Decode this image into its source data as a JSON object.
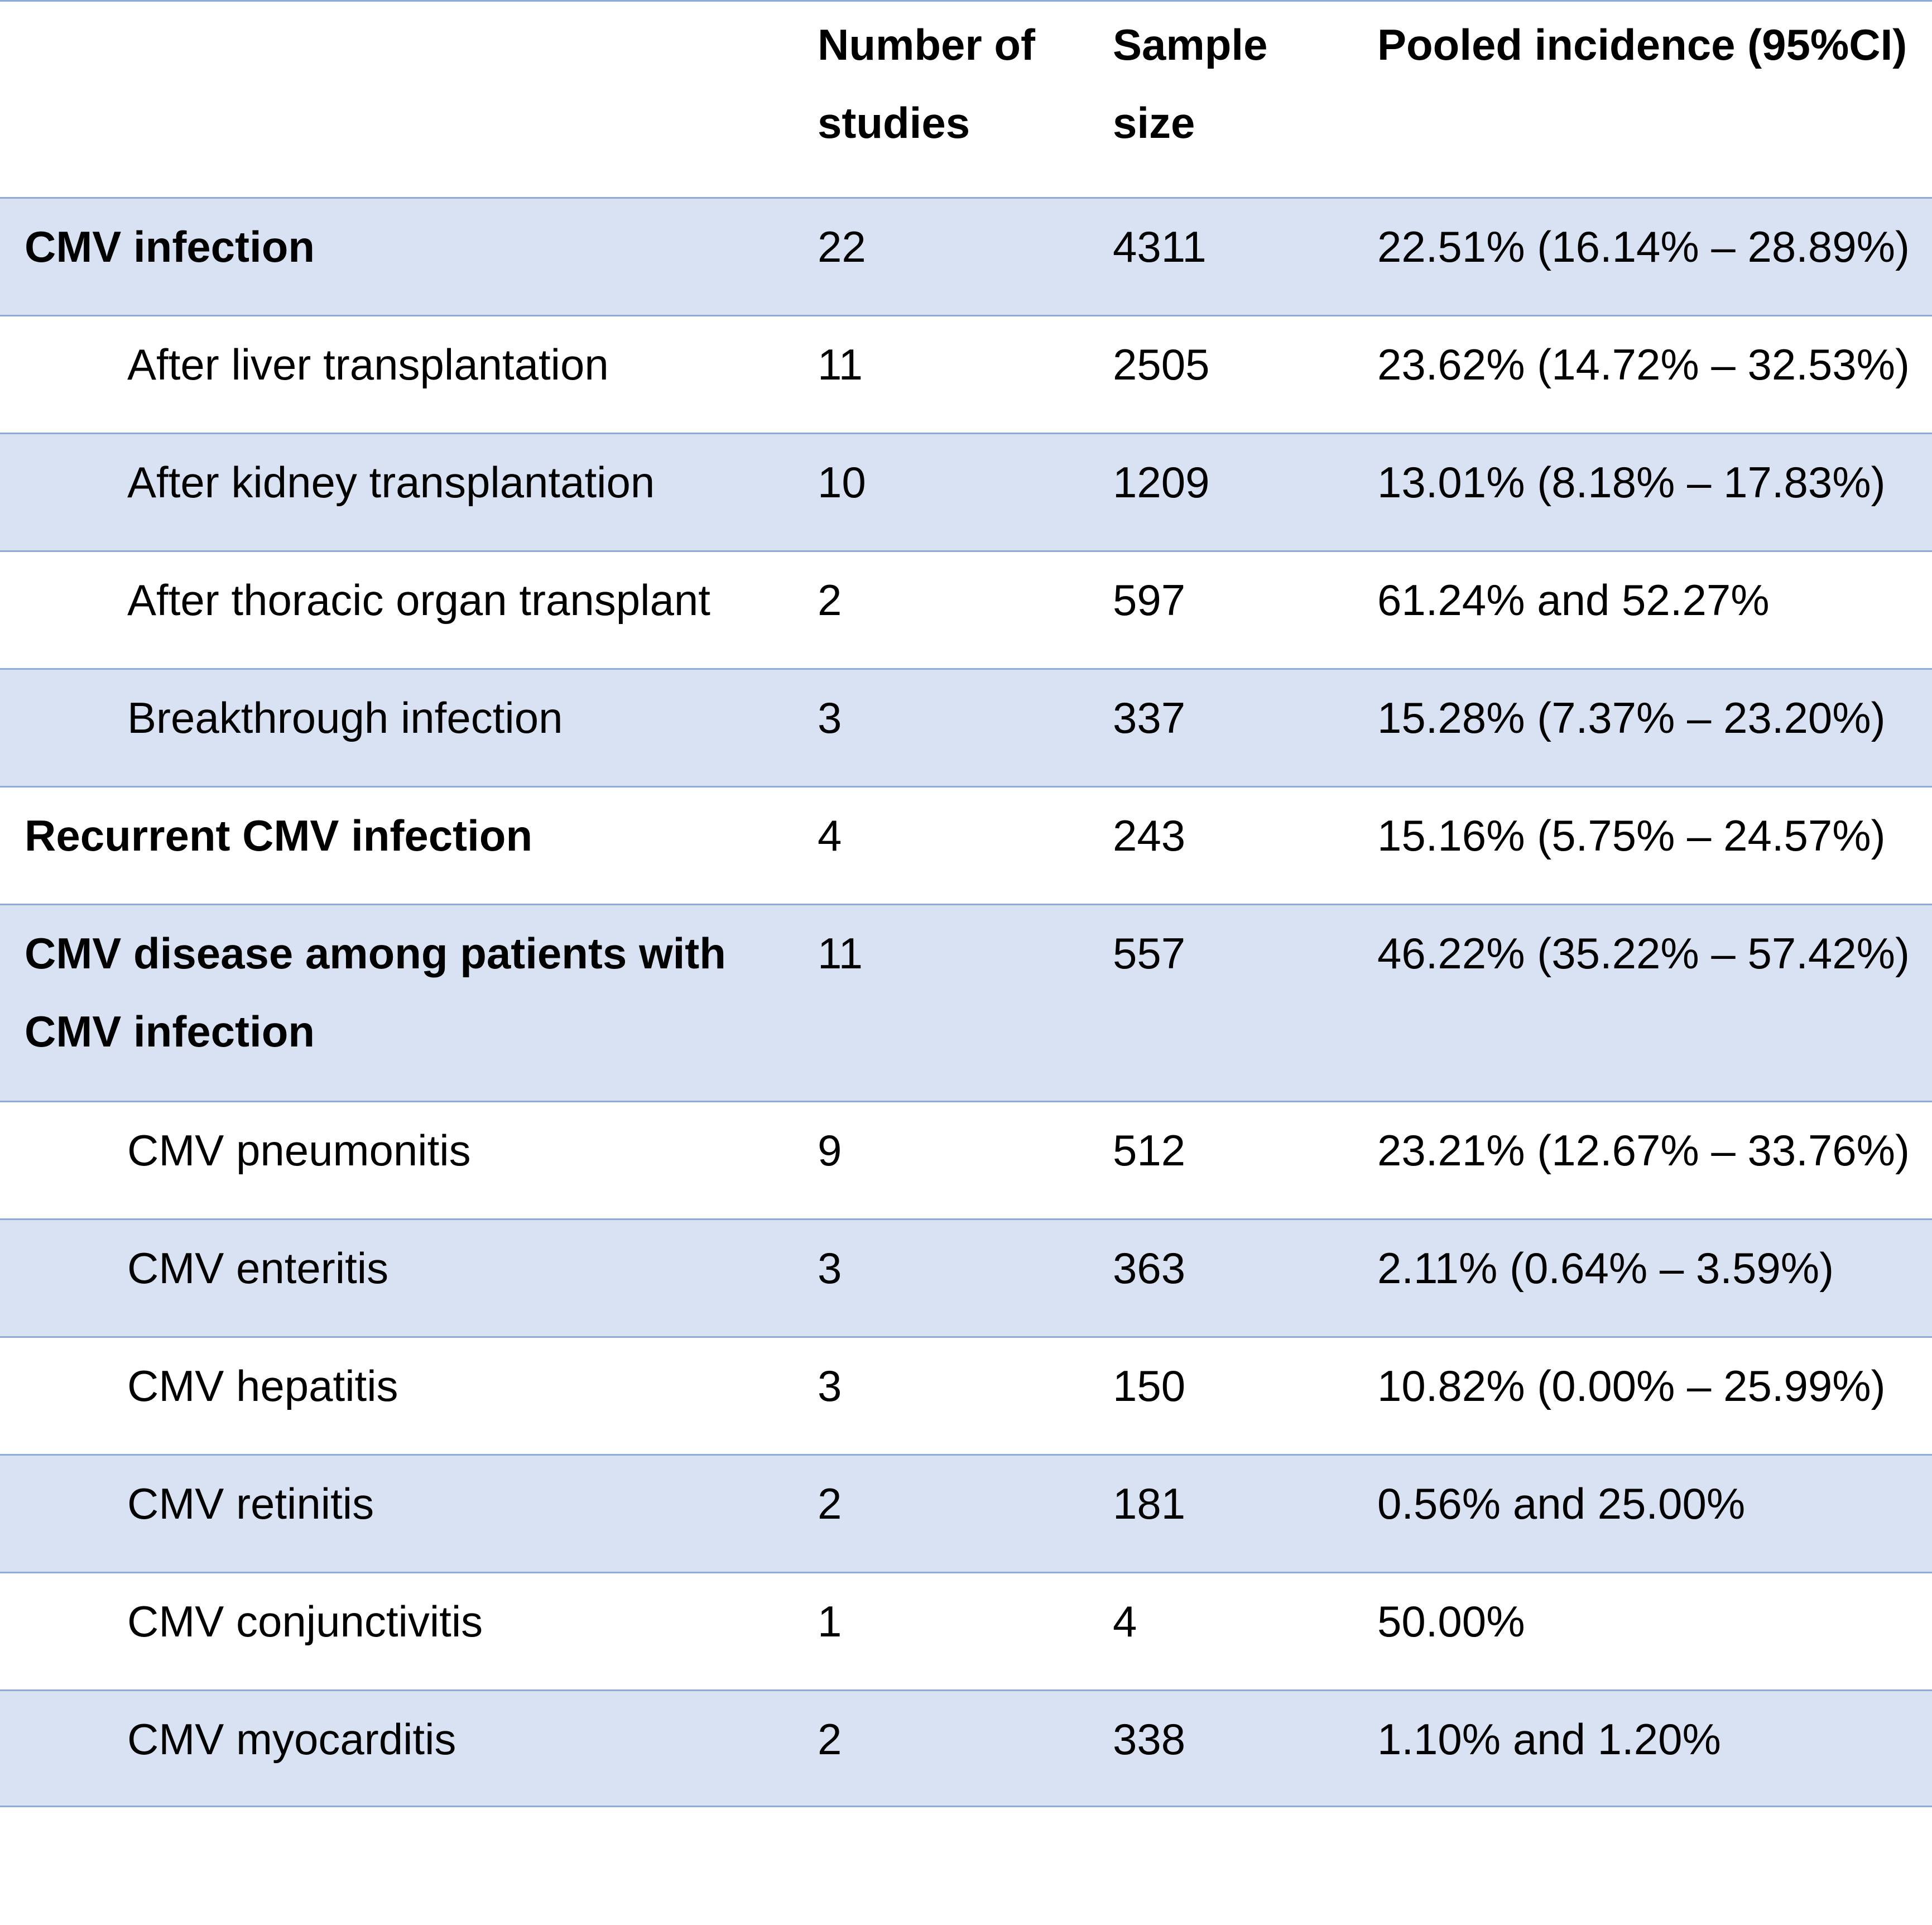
{
  "header": {
    "col1": "",
    "col2": "Number of\nstudies",
    "col3": "Sample\nsize",
    "col4": "Pooled incidence (95%CI)"
  },
  "rows": [
    {
      "label": "CMV infection",
      "studies": "22",
      "sample": "4311",
      "incidence": "22.51% (16.14% – 28.89%)"
    },
    {
      "label": "After liver transplantation",
      "studies": "11",
      "sample": "2505",
      "incidence": "23.62% (14.72% – 32.53%)"
    },
    {
      "label": "After kidney transplantation",
      "studies": "10",
      "sample": "1209",
      "incidence": "13.01% (8.18% – 17.83%)"
    },
    {
      "label": "After thoracic organ transplant",
      "studies": "2",
      "sample": "597",
      "incidence": "61.24% and 52.27%"
    },
    {
      "label": "Breakthrough infection",
      "studies": "3",
      "sample": "337",
      "incidence": "15.28% (7.37% – 23.20%)"
    },
    {
      "label": "Recurrent CMV infection",
      "studies": "4",
      "sample": "243",
      "incidence": "15.16% (5.75% – 24.57%)"
    },
    {
      "label": "CMV disease among patients with\nCMV infection",
      "studies": "11",
      "sample": "557",
      "incidence": "46.22% (35.22% – 57.42%)"
    },
    {
      "label": "CMV pneumonitis",
      "studies": "9",
      "sample": "512",
      "incidence": "23.21% (12.67% – 33.76%)"
    },
    {
      "label": "CMV enteritis",
      "studies": "3",
      "sample": "363",
      "incidence": "2.11% (0.64% – 3.59%)"
    },
    {
      "label": "CMV hepatitis",
      "studies": "3",
      "sample": "150",
      "incidence": "10.82% (0.00% – 25.99%)"
    },
    {
      "label": "CMV retinitis",
      "studies": "2",
      "sample": "181",
      "incidence": "0.56% and 25.00%"
    },
    {
      "label": "CMV conjunctivitis",
      "studies": "1",
      "sample": "4",
      "incidence": "50.00%"
    },
    {
      "label": "CMV myocarditis",
      "studies": "2",
      "sample": "338",
      "incidence": "1.10% and 1.20%"
    }
  ]
}
